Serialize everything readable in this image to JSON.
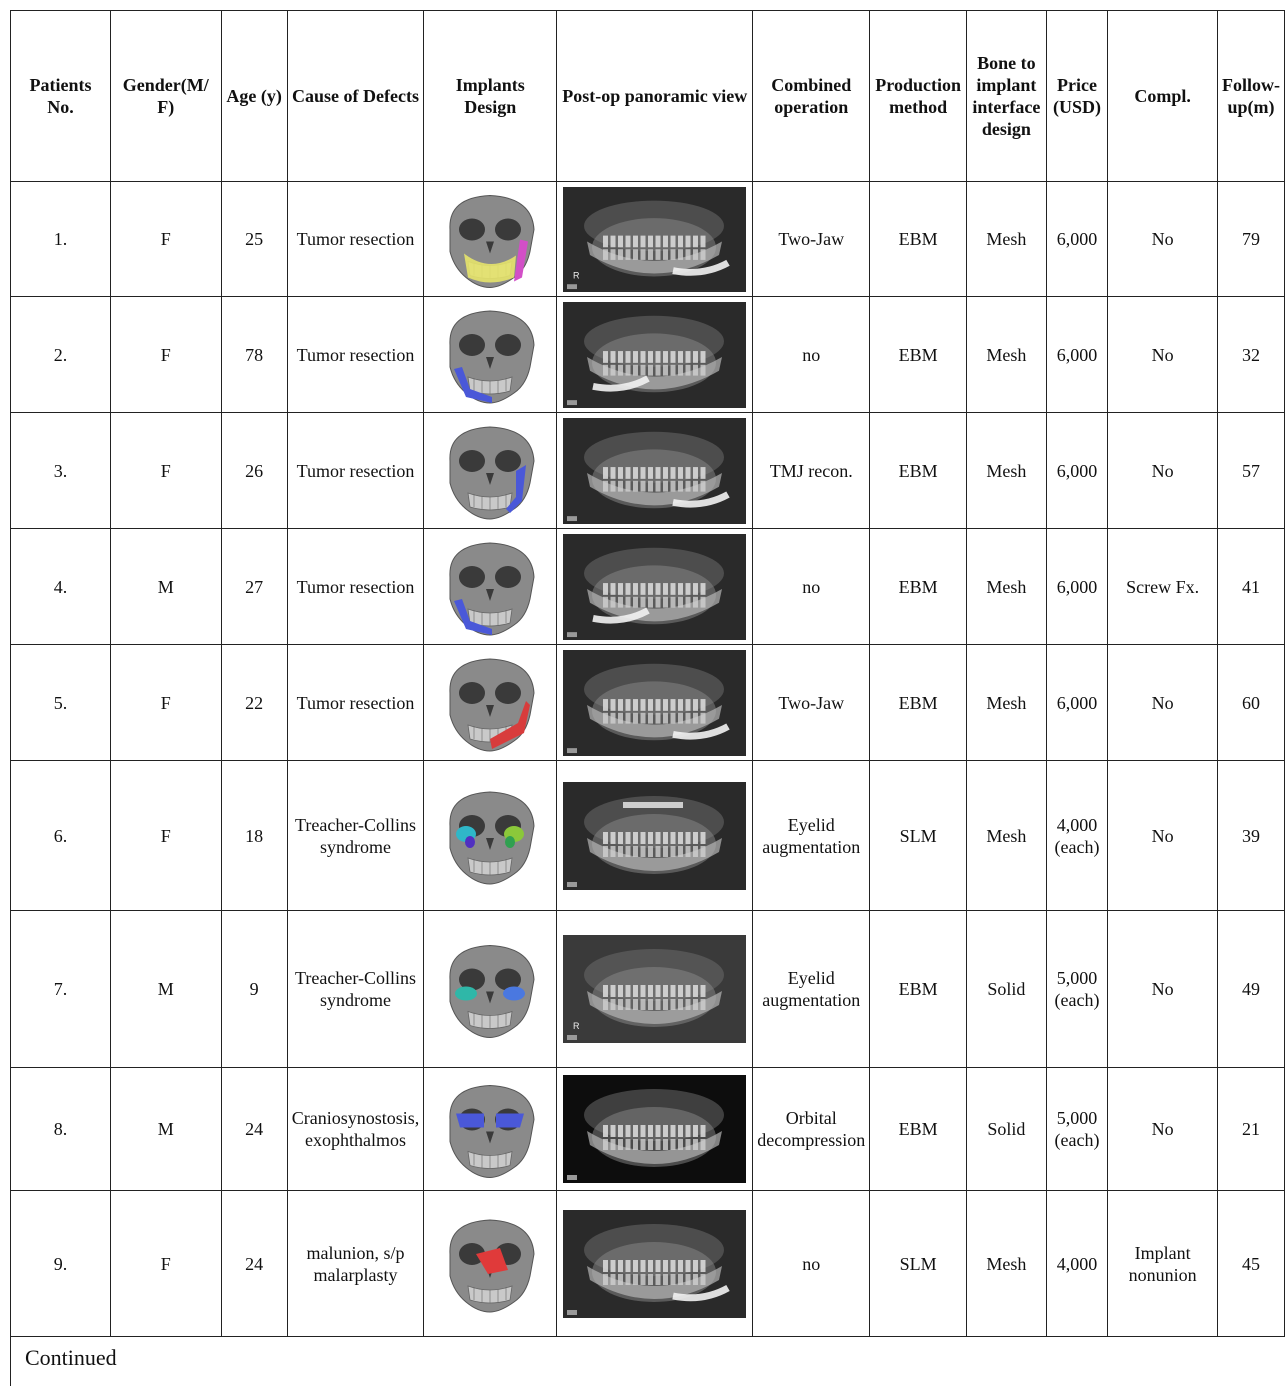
{
  "headers": {
    "patient_no": "Patients No.",
    "gender": "Gender(M/ F)",
    "age": "Age (y)",
    "cause": "Cause of Defects",
    "implant_design": "Implants Design",
    "postop_view": "Post-op panoramic view",
    "combined_operation": "Combined operation",
    "production_method": "Production method",
    "bone_interface": "Bone to implant interface design",
    "price": "Price (USD)",
    "complication": "Compl.",
    "followup": "Follow-up(m)"
  },
  "rows": [
    {
      "no": "1.",
      "gender": "F",
      "age": "25",
      "cause": "Tumor resection",
      "combined": "Two-Jaw",
      "method": "EBM",
      "interface": "Mesh",
      "price": "6,000",
      "compl": "No",
      "followup": "79",
      "implant_color": "#d24fc7",
      "implant_color2": "#e5e36a",
      "xray_marker": "R"
    },
    {
      "no": "2.",
      "gender": "F",
      "age": "78",
      "cause": "Tumor resection",
      "combined": "no",
      "method": "EBM",
      "interface": "Mesh",
      "price": "6,000",
      "compl": "No",
      "followup": "32",
      "implant_color": "#4a58d8",
      "implant_color2": "",
      "xray_marker": ""
    },
    {
      "no": "3.",
      "gender": "F",
      "age": "26",
      "cause": "Tumor resection",
      "combined": "TMJ recon.",
      "method": "EBM",
      "interface": "Mesh",
      "price": "6,000",
      "compl": "No",
      "followup": "57",
      "implant_color": "#4a58d8",
      "implant_color2": "",
      "xray_marker": ""
    },
    {
      "no": "4.",
      "gender": "M",
      "age": "27",
      "cause": "Tumor resection",
      "combined": "no",
      "method": "EBM",
      "interface": "Mesh",
      "price": "6,000",
      "compl": "Screw Fx.",
      "followup": "41",
      "implant_color": "#4a58d8",
      "implant_color2": "",
      "xray_marker": ""
    },
    {
      "no": "5.",
      "gender": "F",
      "age": "22",
      "cause": "Tumor resection",
      "combined": "Two-Jaw",
      "method": "EBM",
      "interface": "Mesh",
      "price": "6,000",
      "compl": "No",
      "followup": "60",
      "implant_color": "#d83c3c",
      "implant_color2": "",
      "xray_marker": ""
    },
    {
      "no": "6.",
      "gender": "F",
      "age": "18",
      "cause": "Treacher-Collins syndrome",
      "combined": "Eyelid augmentation",
      "method": "SLM",
      "interface": "Mesh",
      "price": "4,000 (each)",
      "compl": "No",
      "followup": "39",
      "implant_color": "#2fb7c8",
      "implant_color2": "#8bc83a",
      "xray_marker": ""
    },
    {
      "no": "7.",
      "gender": "M",
      "age": "9",
      "cause": "Treacher-Collins syndrome",
      "combined": "Eyelid augmentation",
      "method": "EBM",
      "interface": "Solid",
      "price": "5,000 (each)",
      "compl": "No",
      "followup": "49",
      "implant_color": "#2fb7a8",
      "implant_color2": "#4a78e0",
      "xray_marker": "R"
    },
    {
      "no": "8.",
      "gender": "M",
      "age": "24",
      "cause": "Craniosynostosis, exophthalmos",
      "combined": "Orbital decompression",
      "method": "EBM",
      "interface": "Solid",
      "price": "5,000 (each)",
      "compl": "No",
      "followup": "21",
      "implant_color": "#4a58d8",
      "implant_color2": "",
      "xray_marker": ""
    },
    {
      "no": "9.",
      "gender": "F",
      "age": "24",
      "cause": "malunion, s/p malarplasty",
      "combined": "no",
      "method": "SLM",
      "interface": "Mesh",
      "price": "4,000",
      "compl": "Implant nonunion",
      "followup": "45",
      "implant_color": "#e03a3a",
      "implant_color2": "",
      "xray_marker": ""
    }
  ],
  "footer": "Continued"
}
